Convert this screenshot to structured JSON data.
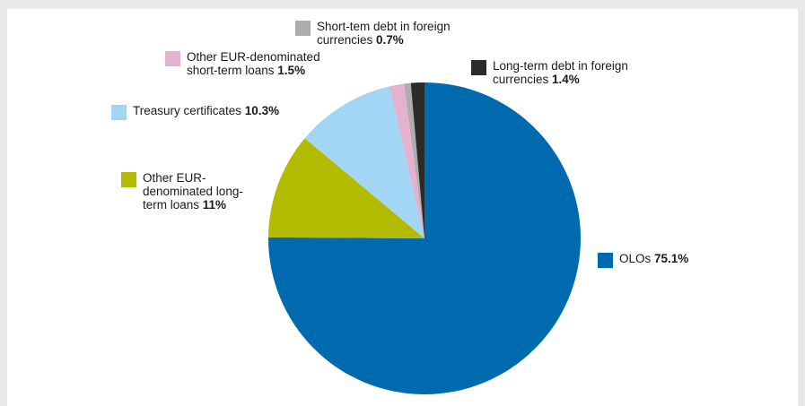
{
  "chart_data": {
    "type": "pie",
    "title": "",
    "unit": "%",
    "slices": [
      {
        "label_lines": [
          "OLOs"
        ],
        "value": 75.1,
        "value_label": "75.1%",
        "color": "#006aae"
      },
      {
        "label_lines": [
          "Other EUR-",
          "denominated long-",
          "term loans"
        ],
        "value": 11,
        "value_label": "11%",
        "color": "#b3bb00"
      },
      {
        "label_lines": [
          "Treasury certificates"
        ],
        "value": 10.3,
        "value_label": "10.3%",
        "color": "#a3d6f4"
      },
      {
        "label_lines": [
          "Other EUR-denominated",
          "short-term loans"
        ],
        "value": 1.5,
        "value_label": "1.5%",
        "color": "#e4b1cf"
      },
      {
        "label_lines": [
          "Short-tem debt in foreign",
          "currencies"
        ],
        "value": 0.7,
        "value_label": "0.7%",
        "color": "#adadad"
      },
      {
        "label_lines": [
          "Long-term debt in foreign",
          "currencies"
        ],
        "value": 1.4,
        "value_label": "1.4%",
        "color": "#2b2b2b"
      }
    ],
    "start_angle_deg": 0,
    "direction": "clockwise",
    "slice_order_drawn": [
      0,
      1,
      2,
      3,
      4,
      5
    ]
  }
}
